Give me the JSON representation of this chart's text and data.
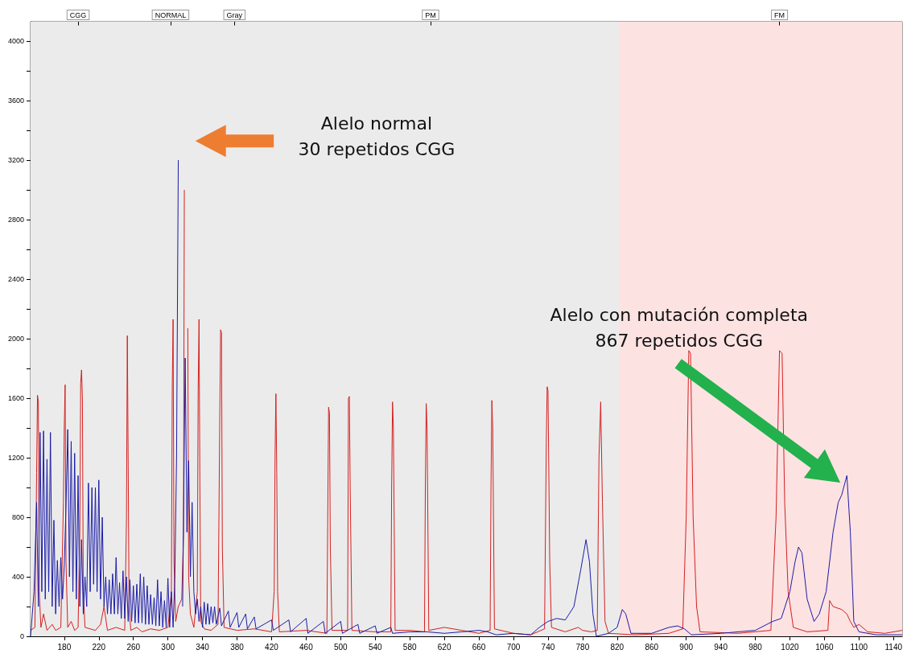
{
  "chart_data": {
    "type": "line",
    "marker": "none",
    "line_style": "solid",
    "xlim": [
      141,
      1150
    ],
    "ylim": [
      0,
      4130
    ],
    "xticks": [
      180,
      220,
      260,
      300,
      340,
      380,
      420,
      460,
      500,
      540,
      580,
      620,
      660,
      700,
      740,
      780,
      820,
      860,
      900,
      940,
      980,
      1020,
      1060,
      1100,
      1140
    ],
    "yticks": [
      0,
      {
        "value": 200,
        "label": null
      },
      400,
      {
        "value": 600,
        "label": null
      },
      800,
      {
        "value": 1000,
        "label": null
      },
      1200,
      {
        "value": 1400,
        "label": null
      },
      1600,
      {
        "value": 1800,
        "label": null
      },
      2000,
      {
        "value": 2200,
        "label": null
      },
      2400,
      {
        "value": 2600,
        "label": null
      },
      2800,
      {
        "value": 3000,
        "label": null
      },
      3200,
      {
        "value": 3400,
        "label": null
      },
      3600,
      {
        "value": 3800,
        "label": null
      },
      4000
    ],
    "ref_lines": [
      {
        "axis": "x",
        "value": 196,
        "label": "CGG"
      },
      {
        "axis": "x",
        "value": 303,
        "label": "NORMAL"
      },
      {
        "axis": "x",
        "value": 377,
        "label": "Gray"
      },
      {
        "axis": "x",
        "value": 604,
        "label": "PM"
      },
      {
        "axis": "x",
        "value": 1008,
        "label": "FM"
      }
    ],
    "bands": [
      {
        "axis": "x",
        "from": 141,
        "to": 822,
        "color": "#ebebeb"
      },
      {
        "axis": "x",
        "from": 822,
        "to": 1150,
        "color": "#fde2e2"
      }
    ],
    "annotations": [
      "Alelo normal\n30 repetidos CGG",
      "Alelo con mutación completa\n867 repetidos CGG"
    ],
    "series": [
      {
        "color": "#1c1ca8",
        "x": [
          141,
          145,
          148,
          150,
          152,
          154,
          156,
          158,
          160,
          162,
          164,
          166,
          168,
          170,
          172,
          174,
          176,
          178,
          180,
          182,
          184,
          186,
          188,
          190,
          192,
          194,
          196,
          198,
          200,
          202,
          204,
          206,
          208,
          210,
          212,
          214,
          216,
          218,
          220,
          222,
          224,
          226,
          228,
          230,
          232,
          234,
          236,
          238,
          240,
          242,
          244,
          246,
          248,
          250,
          252,
          254,
          256,
          258,
          260,
          262,
          264,
          266,
          268,
          270,
          272,
          274,
          276,
          278,
          280,
          282,
          284,
          286,
          288,
          290,
          292,
          294,
          296,
          298,
          300,
          302,
          304,
          306,
          308,
          310,
          312,
          313,
          316,
          317,
          320,
          322,
          324,
          326,
          328,
          330,
          332,
          334,
          336,
          338,
          340,
          342,
          344,
          346,
          348,
          350,
          352,
          354,
          356,
          360,
          362,
          370,
          372,
          380,
          382,
          390,
          392,
          400,
          402,
          420,
          422,
          440,
          442,
          460,
          462,
          480,
          482,
          500,
          502,
          520,
          522,
          540,
          542,
          558,
          560,
          580,
          600,
          620,
          640,
          660,
          670,
          680,
          700,
          720,
          730,
          740,
          750,
          760,
          770,
          778,
          784,
          788,
          792,
          796,
          810,
          820,
          826,
          830,
          836,
          860,
          880,
          890,
          898,
          906,
          940,
          980,
          1000,
          1010,
          1020,
          1026,
          1030,
          1034,
          1040,
          1048,
          1054,
          1062,
          1070,
          1076,
          1080,
          1086,
          1090,
          1094,
          1100,
          1120,
          1150
        ],
        "values": [
          0,
          300,
          900,
          200,
          1370,
          300,
          1380,
          250,
          1190,
          300,
          1370,
          200,
          780,
          150,
          510,
          200,
          530,
          250,
          480,
          870,
          1390,
          400,
          1310,
          300,
          1230,
          250,
          1080,
          200,
          650,
          150,
          400,
          200,
          1030,
          300,
          1000,
          350,
          1000,
          300,
          1050,
          250,
          800,
          200,
          400,
          150,
          380,
          150,
          420,
          150,
          530,
          150,
          360,
          120,
          440,
          120,
          400,
          100,
          380,
          100,
          340,
          90,
          350,
          90,
          420,
          90,
          400,
          80,
          340,
          80,
          280,
          80,
          260,
          70,
          380,
          70,
          300,
          60,
          240,
          60,
          390,
          60,
          300,
          60,
          400,
          1200,
          3200,
          null,
          null,
          200,
          1870,
          700,
          1180,
          400,
          900,
          300,
          150,
          250,
          100,
          200,
          60,
          230,
          80,
          220,
          80,
          200,
          90,
          200,
          80,
          190,
          70,
          170,
          60,
          160,
          60,
          150,
          50,
          130,
          50,
          110,
          40,
          110,
          30,
          120,
          20,
          100,
          20,
          100,
          20,
          80,
          20,
          70,
          20,
          60,
          20,
          30,
          30,
          20,
          30,
          40,
          30,
          10,
          20,
          10,
          60,
          100,
          120,
          110,
          200,
          450,
          650,
          500,
          150,
          0,
          20,
          60,
          180,
          150,
          20,
          20,
          60,
          70,
          50,
          10,
          20,
          40,
          100,
          120,
          300,
          500,
          600,
          560,
          250,
          100,
          150,
          300,
          700,
          900,
          950,
          1080,
          700,
          100,
          30,
          10,
          10
        ]
      },
      {
        "color": "#d42020",
        "x": [
          141,
          146,
          148,
          149,
          150,
          151,
          153,
          156,
          160,
          166,
          170,
          176,
          179,
          180,
          181,
          182,
          184,
          188,
          192,
          196,
          198,
          199,
          200,
          201,
          202,
          204,
          210,
          216,
          222,
          226,
          230,
          240,
          250,
          252,
          253,
          254,
          255,
          257,
          264,
          270,
          280,
          290,
          300,
          304,
          305,
          306,
          307,
          309,
          312,
          316,
          318,
          319,
          320,
          321,
          322,
          323,
          324,
          326,
          330,
          334,
          335,
          336,
          337,
          338,
          342,
          350,
          358,
          360,
          361,
          362,
          363,
          365,
          380,
          400,
          420,
          423,
          424,
          425,
          426,
          427,
          429,
          460,
          484,
          485,
          486,
          487,
          488,
          490,
          508,
          509,
          510,
          511,
          513,
          540,
          558,
          559,
          560,
          561,
          563,
          580,
          597,
          598,
          599,
          600,
          602,
          620,
          640,
          660,
          673,
          674,
          675,
          676,
          678,
          700,
          720,
          736,
          738,
          739,
          740,
          742,
          744,
          760,
          775,
          780,
          790,
          797,
          799,
          801,
          803,
          806,
          810,
          840,
          880,
          896,
          900,
          903,
          905,
          908,
          912,
          916,
          960,
          998,
          1004,
          1008,
          1011,
          1014,
          1018,
          1024,
          1040,
          1064,
          1066,
          1070,
          1080,
          1086,
          1090,
          1094,
          1100,
          1110,
          1130,
          1150
        ],
        "values": [
          40,
          60,
          1100,
          1620,
          1580,
          300,
          60,
          150,
          40,
          80,
          40,
          60,
          900,
          1400,
          1690,
          500,
          60,
          100,
          40,
          60,
          700,
          1700,
          1790,
          1600,
          300,
          60,
          50,
          40,
          80,
          200,
          40,
          60,
          40,
          800,
          2020,
          1150,
          200,
          40,
          60,
          30,
          50,
          40,
          60,
          300,
          1660,
          2130,
          500,
          100,
          200,
          250,
          680,
          3000,
          null,
          null,
          null,
          2070,
          400,
          150,
          60,
          300,
          1650,
          2130,
          1030,
          100,
          50,
          40,
          80,
          1460,
          2060,
          2040,
          600,
          60,
          40,
          50,
          30,
          300,
          1200,
          1630,
          1100,
          300,
          30,
          40,
          20,
          800,
          1540,
          1500,
          600,
          40,
          40,
          1600,
          1612,
          1000,
          40,
          30,
          30,
          1000,
          1575,
          1400,
          40,
          40,
          30,
          1000,
          1564,
          1400,
          40,
          60,
          40,
          20,
          40,
          1000,
          1585,
          1400,
          50,
          20,
          10,
          50,
          1300,
          1677,
          1650,
          500,
          60,
          30,
          60,
          40,
          30,
          40,
          1200,
          1575,
          900,
          100,
          20,
          10,
          20,
          50,
          800,
          1920,
          1900,
          800,
          200,
          30,
          20,
          40,
          800,
          1920,
          1900,
          900,
          300,
          60,
          30,
          40,
          240,
          200,
          180,
          150,
          100,
          60,
          80,
          30,
          20,
          40
        ]
      }
    ]
  }
}
